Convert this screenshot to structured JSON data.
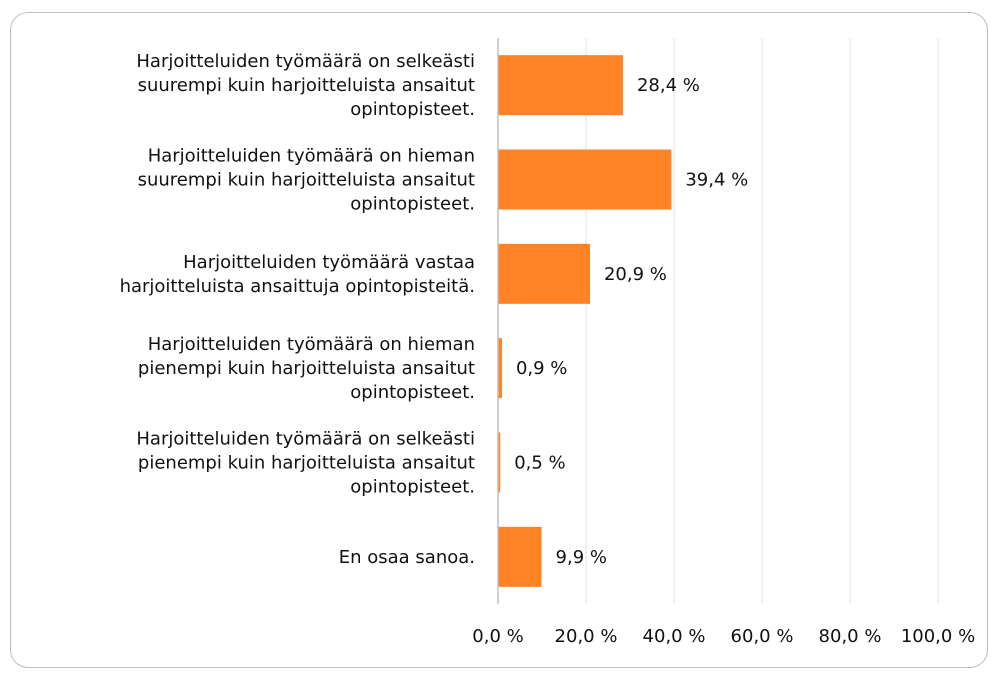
{
  "chart_data": {
    "type": "bar",
    "orientation": "horizontal",
    "categories": [
      [
        "Harjoitteluiden työmäärä on selkeästi",
        "suurempi kuin harjoitteluista ansaitut",
        "opintopisteet."
      ],
      [
        "Harjoitteluiden työmäärä on hieman",
        "suurempi kuin harjoitteluista ansaitut",
        "opintopisteet."
      ],
      [
        "Harjoitteluiden työmäärä vastaa",
        "harjoitteluista ansaittuja opintopisteitä."
      ],
      [
        "Harjoitteluiden työmäärä on hieman",
        "pienempi kuin harjoitteluista ansaitut",
        "opintopisteet."
      ],
      [
        "Harjoitteluiden työmäärä on selkeästi",
        "pienempi kuin harjoitteluista ansaitut",
        "opintopisteet."
      ],
      [
        "En osaa sanoa."
      ]
    ],
    "values": [
      28.4,
      39.4,
      20.9,
      0.9,
      0.5,
      9.9
    ],
    "value_labels": [
      "28,4 %",
      "39,4 %",
      "20,9 %",
      "0,9 %",
      "0,5 %",
      "9,9 %"
    ],
    "xlim": [
      0,
      100
    ],
    "x_ticks": [
      0,
      20,
      40,
      60,
      80,
      100
    ],
    "x_tick_labels": [
      "0,0 %",
      "20,0 %",
      "40,0 %",
      "60,0 %",
      "80,0 %",
      "100,0 %"
    ],
    "grid": true,
    "legend": "none",
    "colors": {
      "bar": "#FF8225",
      "grid": "#D6E4F0",
      "axis": "#BFBFBF",
      "text": "#111111"
    }
  }
}
